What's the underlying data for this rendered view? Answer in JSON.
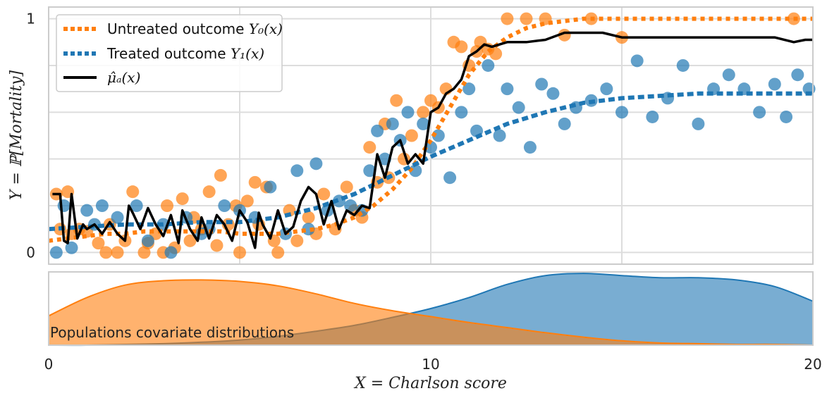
{
  "chart_data": {
    "type": "scatter",
    "top_panel": {
      "ylabel": "Y = ℙ[Mortality]",
      "xlim": [
        0,
        20
      ],
      "ylim": [
        -0.05,
        1.05
      ],
      "yticks": [
        0,
        1
      ],
      "grid": true,
      "legend_position": "top-left",
      "colors": {
        "untreated": "#ff7f0e",
        "treated": "#1f77b4",
        "estimate": "#000000"
      },
      "legend": [
        {
          "label": "Untreated outcome ",
          "math": "Y₀(x)",
          "style": "dotted",
          "color": "#ff7f0e"
        },
        {
          "label": "Treated outcome ",
          "math": "Y₁(x)",
          "style": "dotted",
          "color": "#1f77b4"
        },
        {
          "label": "",
          "math": "μ̂ₐ(x)",
          "style": "solid",
          "color": "#000000"
        }
      ],
      "series": [
        {
          "key": "untreated_curve",
          "style": "dotted",
          "x": [
            0,
            0.5,
            1,
            1.5,
            2,
            2.5,
            3,
            3.5,
            4,
            4.5,
            5,
            5.5,
            6,
            6.5,
            7,
            7.5,
            8,
            8.5,
            9,
            9.5,
            10,
            10.5,
            11,
            11.5,
            12,
            12.5,
            13,
            13.5,
            14,
            14.5,
            15,
            16,
            17,
            18,
            19,
            20
          ],
          "y": [
            0.05,
            0.06,
            0.07,
            0.08,
            0.08,
            0.09,
            0.09,
            0.09,
            0.09,
            0.09,
            0.08,
            0.08,
            0.08,
            0.09,
            0.1,
            0.12,
            0.15,
            0.2,
            0.27,
            0.36,
            0.48,
            0.62,
            0.76,
            0.86,
            0.92,
            0.96,
            0.98,
            0.99,
            1.0,
            1.0,
            1.0,
            1.0,
            1.0,
            1.0,
            1.0,
            1.0
          ]
        },
        {
          "key": "treated_curve",
          "style": "dotted",
          "x": [
            0,
            1,
            2,
            3,
            4,
            5,
            6,
            7,
            8,
            9,
            10,
            11,
            12,
            13,
            14,
            15,
            16,
            17,
            18,
            19,
            20
          ],
          "y": [
            0.1,
            0.11,
            0.12,
            0.12,
            0.13,
            0.13,
            0.15,
            0.19,
            0.25,
            0.33,
            0.41,
            0.48,
            0.55,
            0.6,
            0.64,
            0.66,
            0.67,
            0.68,
            0.68,
            0.68,
            0.68
          ]
        },
        {
          "key": "estimate_curve",
          "style": "solid",
          "x": [
            0.1,
            0.3,
            0.4,
            0.5,
            0.6,
            0.75,
            0.9,
            1.0,
            1.2,
            1.4,
            1.6,
            1.8,
            2.0,
            2.1,
            2.2,
            2.4,
            2.6,
            2.8,
            3.0,
            3.2,
            3.4,
            3.5,
            3.7,
            3.9,
            4.0,
            4.2,
            4.4,
            4.6,
            4.8,
            5.0,
            5.2,
            5.4,
            5.5,
            5.6,
            5.8,
            6.0,
            6.2,
            6.4,
            6.6,
            6.8,
            7.0,
            7.2,
            7.4,
            7.6,
            7.8,
            8.0,
            8.2,
            8.4,
            8.6,
            8.8,
            9.0,
            9.2,
            9.4,
            9.6,
            9.8,
            10.0,
            10.2,
            10.4,
            10.6,
            10.8,
            11.0,
            11.2,
            11.4,
            11.6,
            11.8,
            12.0,
            12.5,
            13.0,
            13.5,
            14.0,
            14.5,
            15.0,
            15.5,
            16.0,
            16.5,
            17.0,
            17.5,
            18.0,
            18.5,
            19.0,
            19.5,
            19.8,
            20.0
          ],
          "y": [
            0.25,
            0.25,
            0.05,
            0.04,
            0.25,
            0.06,
            0.12,
            0.1,
            0.12,
            0.08,
            0.13,
            0.08,
            0.05,
            0.2,
            0.17,
            0.1,
            0.19,
            0.12,
            0.07,
            0.16,
            0.04,
            0.18,
            0.1,
            0.05,
            0.15,
            0.06,
            0.16,
            0.12,
            0.05,
            0.18,
            0.13,
            0.02,
            0.17,
            0.12,
            0.06,
            0.18,
            0.08,
            0.11,
            0.22,
            0.28,
            0.25,
            0.12,
            0.22,
            0.1,
            0.18,
            0.16,
            0.2,
            0.19,
            0.42,
            0.32,
            0.45,
            0.48,
            0.38,
            0.42,
            0.38,
            0.6,
            0.62,
            0.68,
            0.7,
            0.74,
            0.84,
            0.86,
            0.89,
            0.88,
            0.89,
            0.9,
            0.9,
            0.91,
            0.94,
            0.94,
            0.94,
            0.92,
            0.92,
            0.92,
            0.92,
            0.92,
            0.92,
            0.92,
            0.92,
            0.92,
            0.9,
            0.91,
            0.91
          ]
        }
      ],
      "untreated_points": {
        "x": [
          0.2,
          0.3,
          0.5,
          0.6,
          0.8,
          1.0,
          1.3,
          1.5,
          1.6,
          1.8,
          2.0,
          2.2,
          2.5,
          2.6,
          2.8,
          3.0,
          3.1,
          3.3,
          3.5,
          3.7,
          3.8,
          4.0,
          4.2,
          4.4,
          4.5,
          4.7,
          4.9,
          5.0,
          5.2,
          5.4,
          5.5,
          5.7,
          5.9,
          6.0,
          6.3,
          6.5,
          6.8,
          7.0,
          7.2,
          7.5,
          7.8,
          8.0,
          8.2,
          8.4,
          8.6,
          8.8,
          8.9,
          9.1,
          9.3,
          9.5,
          9.8,
          10.0,
          10.2,
          10.4,
          10.6,
          10.8,
          11.0,
          11.2,
          11.3,
          11.5,
          11.7,
          12.0,
          12.5,
          13.0,
          13.5,
          14.2,
          15.0,
          19.5
        ],
        "y": [
          0.25,
          0.1,
          0.26,
          0.08,
          0.1,
          0.09,
          0.04,
          0.0,
          0.12,
          0.0,
          0.05,
          0.26,
          0.0,
          0.04,
          0.08,
          0.0,
          0.2,
          0.02,
          0.23,
          0.05,
          0.15,
          0.1,
          0.26,
          0.03,
          0.33,
          0.12,
          0.2,
          0.0,
          0.22,
          0.3,
          0.12,
          0.28,
          0.05,
          0.0,
          0.18,
          0.05,
          0.15,
          0.08,
          0.25,
          0.1,
          0.28,
          0.18,
          0.15,
          0.45,
          0.3,
          0.55,
          0.32,
          0.65,
          0.4,
          0.5,
          0.6,
          0.65,
          0.62,
          0.7,
          0.9,
          0.88,
          0.8,
          0.86,
          0.9,
          0.87,
          0.85,
          1.0,
          1.0,
          1.0,
          0.93,
          1.0,
          0.92,
          1.0
        ]
      },
      "treated_points": {
        "x": [
          0.2,
          0.4,
          0.6,
          1.0,
          1.2,
          1.4,
          1.8,
          2.3,
          2.6,
          3.0,
          3.2,
          3.6,
          4.0,
          4.2,
          4.6,
          5.0,
          5.4,
          5.8,
          6.2,
          6.5,
          6.8,
          7.0,
          7.3,
          7.6,
          7.9,
          8.2,
          8.4,
          8.6,
          8.8,
          9.0,
          9.2,
          9.4,
          9.6,
          9.8,
          10.0,
          10.2,
          10.5,
          10.8,
          11.0,
          11.2,
          11.5,
          11.8,
          12.0,
          12.3,
          12.6,
          12.9,
          13.2,
          13.5,
          13.8,
          14.2,
          14.6,
          15.0,
          15.4,
          15.8,
          16.2,
          16.6,
          17.0,
          17.4,
          17.8,
          18.2,
          18.6,
          19.0,
          19.3,
          19.6,
          19.9
        ],
        "y": [
          0.0,
          0.2,
          0.02,
          0.18,
          0.12,
          0.2,
          0.15,
          0.2,
          0.05,
          0.12,
          0.0,
          0.15,
          0.08,
          0.1,
          0.2,
          0.18,
          0.15,
          0.28,
          0.08,
          0.35,
          0.1,
          0.38,
          0.18,
          0.22,
          0.2,
          0.18,
          0.35,
          0.52,
          0.4,
          0.55,
          0.48,
          0.6,
          0.35,
          0.55,
          0.45,
          0.5,
          0.32,
          0.6,
          0.7,
          0.52,
          0.8,
          0.5,
          0.7,
          0.62,
          0.45,
          0.72,
          0.68,
          0.55,
          0.62,
          0.65,
          0.7,
          0.6,
          0.82,
          0.58,
          0.66,
          0.8,
          0.55,
          0.7,
          0.76,
          0.7,
          0.6,
          0.72,
          0.58,
          0.76,
          0.7
        ]
      }
    },
    "bottom_panel": {
      "type": "area",
      "label": "Populations covariate distributions",
      "xlabel": "X = Charlson score",
      "xticks": [
        0,
        10,
        20
      ],
      "xlim": [
        0,
        20
      ],
      "series": [
        {
          "key": "untreated_density",
          "color": "#ff7f0e",
          "x": [
            0,
            1,
            2,
            3,
            4,
            5,
            6,
            7,
            8,
            9,
            10,
            11,
            12,
            13,
            14,
            15,
            16,
            17,
            18,
            19,
            20
          ],
          "y": [
            0.4,
            0.65,
            0.82,
            0.88,
            0.89,
            0.87,
            0.81,
            0.7,
            0.57,
            0.47,
            0.39,
            0.31,
            0.24,
            0.17,
            0.11,
            0.06,
            0.03,
            0.02,
            0.01,
            0.01,
            0.0
          ]
        },
        {
          "key": "treated_density",
          "color": "#1f77b4",
          "x": [
            0,
            1,
            2,
            3,
            4,
            5,
            6,
            7,
            8,
            9,
            10,
            11,
            12,
            13,
            14,
            15,
            16,
            17,
            18,
            19,
            20
          ],
          "y": [
            0.0,
            0.0,
            0.01,
            0.02,
            0.04,
            0.07,
            0.12,
            0.19,
            0.27,
            0.38,
            0.5,
            0.65,
            0.83,
            0.95,
            0.98,
            0.95,
            0.92,
            0.92,
            0.89,
            0.8,
            0.6
          ]
        }
      ]
    }
  }
}
